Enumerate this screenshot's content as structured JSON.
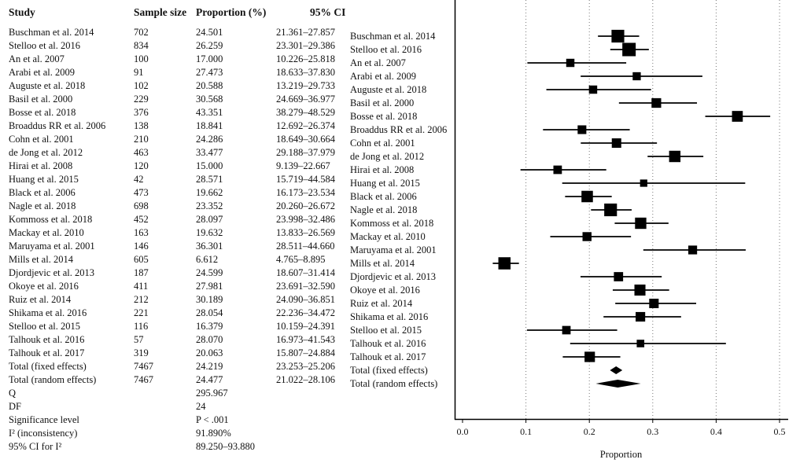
{
  "table": {
    "headers": {
      "study": "Study",
      "sample_size": "Sample size",
      "proportion": "Proportion (%)",
      "ci": "95% CI"
    },
    "rows": [
      {
        "study": "Buschman et al. 2014",
        "n": "702",
        "p": "24.501",
        "ci": "21.361–27.857"
      },
      {
        "study": "Stelloo et al. 2016",
        "n": "834",
        "p": "26.259",
        "ci": "23.301–29.386"
      },
      {
        "study": "An et al. 2007",
        "n": "100",
        "p": "17.000",
        "ci": "10.226–25.818"
      },
      {
        "study": "Arabi et al. 2009",
        "n": "91",
        "p": "27.473",
        "ci": "18.633–37.830"
      },
      {
        "study": "Auguste et al. 2018",
        "n": "102",
        "p": "20.588",
        "ci": "13.219–29.733"
      },
      {
        "study": "Basil et al. 2000",
        "n": "229",
        "p": "30.568",
        "ci": "24.669–36.977"
      },
      {
        "study": "Bosse et al. 2018",
        "n": "376",
        "p": "43.351",
        "ci": "38.279–48.529"
      },
      {
        "study": "Broaddus RR et al. 2006",
        "n": "138",
        "p": "18.841",
        "ci": "12.692–26.374"
      },
      {
        "study": "Cohn et al. 2001",
        "n": "210",
        "p": "24.286",
        "ci": "18.649–30.664"
      },
      {
        "study": "de Jong et al. 2012",
        "n": "463",
        "p": "33.477",
        "ci": "29.188–37.979"
      },
      {
        "study": "Hirai et al. 2008",
        "n": "120",
        "p": "15.000",
        "ci": "9.139–22.667"
      },
      {
        "study": "Huang et al. 2015",
        "n": "42",
        "p": "28.571",
        "ci": "15.719–44.584"
      },
      {
        "study": "Black et al. 2006",
        "n": "473",
        "p": "19.662",
        "ci": "16.173–23.534"
      },
      {
        "study": "Nagle et al. 2018",
        "n": "698",
        "p": "23.352",
        "ci": "20.260–26.672"
      },
      {
        "study": "Kommoss et al. 2018",
        "n": "452",
        "p": "28.097",
        "ci": "23.998–32.486"
      },
      {
        "study": "Mackay et al. 2010",
        "n": "163",
        "p": "19.632",
        "ci": "13.833–26.569"
      },
      {
        "study": "Maruyama et al. 2001",
        "n": "146",
        "p": "36.301",
        "ci": "28.511–44.660"
      },
      {
        "study": "Mills et al. 2014",
        "n": "605",
        "p": "6.612",
        "ci": "4.765–8.895"
      },
      {
        "study": "Djordjevic et al. 2013",
        "n": "187",
        "p": "24.599",
        "ci": "18.607–31.414"
      },
      {
        "study": "Okoye et al. 2016",
        "n": "411",
        "p": "27.981",
        "ci": "23.691–32.590"
      },
      {
        "study": "Ruiz et al. 2014",
        "n": "212",
        "p": "30.189",
        "ci": "24.090–36.851"
      },
      {
        "study": "Shikama et al. 2016",
        "n": "221",
        "p": "28.054",
        "ci": "22.236–34.472"
      },
      {
        "study": "Stelloo et al. 2015",
        "n": "116",
        "p": "16.379",
        "ci": "10.159–24.391"
      },
      {
        "study": "Talhouk et al. 2016",
        "n": "57",
        "p": "28.070",
        "ci": "16.973–41.543"
      },
      {
        "study": "Talhouk et al. 2017",
        "n": "319",
        "p": "20.063",
        "ci": "15.807–24.884"
      },
      {
        "study": "Total (fixed effects)",
        "n": "7467",
        "p": "24.219",
        "ci": "23.253–25.206"
      },
      {
        "study": "Total (random effects)",
        "n": "7467",
        "p": "24.477",
        "ci": "21.022–28.106"
      }
    ],
    "stats": [
      {
        "label": "Q",
        "value": "295.967"
      },
      {
        "label": "DF",
        "value": "24"
      },
      {
        "label": "Significance level",
        "value": "P < .001"
      },
      {
        "label": "I² (inconsistency)",
        "value": "91.890%"
      },
      {
        "label": "95% CI for I²",
        "value": "89.250–93.880"
      }
    ]
  },
  "chart_data": {
    "type": "forest",
    "xlabel": "Proportion",
    "xlim": [
      0,
      0.5
    ],
    "xticks": [
      "0.0",
      "0.1",
      "0.2",
      "0.3",
      "0.4",
      "0.5"
    ],
    "xtick_values": [
      0,
      0.1,
      0.2,
      0.3,
      0.4,
      0.5
    ],
    "grid": "vertical dotted",
    "studies": [
      {
        "label": "Buschman et al. 2014",
        "est": 0.24501,
        "lo": 0.21361,
        "hi": 0.27857,
        "weight": 702
      },
      {
        "label": "Stelloo et al. 2016",
        "est": 0.26259,
        "lo": 0.23301,
        "hi": 0.29386,
        "weight": 834
      },
      {
        "label": "An et al. 2007",
        "est": 0.17,
        "lo": 0.10226,
        "hi": 0.25818,
        "weight": 100
      },
      {
        "label": "Arabi et al. 2009",
        "est": 0.27473,
        "lo": 0.18633,
        "hi": 0.3783,
        "weight": 91
      },
      {
        "label": "Auguste et al. 2018",
        "est": 0.20588,
        "lo": 0.13219,
        "hi": 0.29733,
        "weight": 102
      },
      {
        "label": "Basil et al. 2000",
        "est": 0.30568,
        "lo": 0.24669,
        "hi": 0.36977,
        "weight": 229
      },
      {
        "label": "Bosse et al. 2018",
        "est": 0.43351,
        "lo": 0.38279,
        "hi": 0.48529,
        "weight": 376
      },
      {
        "label": "Broaddus RR et al. 2006",
        "est": 0.18841,
        "lo": 0.12692,
        "hi": 0.26374,
        "weight": 138
      },
      {
        "label": "Cohn et al. 2001",
        "est": 0.24286,
        "lo": 0.18649,
        "hi": 0.30664,
        "weight": 210
      },
      {
        "label": "de Jong et al. 2012",
        "est": 0.33477,
        "lo": 0.29188,
        "hi": 0.37979,
        "weight": 463
      },
      {
        "label": "Hirai et al. 2008",
        "est": 0.15,
        "lo": 0.09139,
        "hi": 0.22667,
        "weight": 120
      },
      {
        "label": "Huang et al. 2015",
        "est": 0.28571,
        "lo": 0.15719,
        "hi": 0.44584,
        "weight": 42
      },
      {
        "label": "Black et al. 2006",
        "est": 0.19662,
        "lo": 0.16173,
        "hi": 0.23534,
        "weight": 473
      },
      {
        "label": "Nagle et al. 2018",
        "est": 0.23352,
        "lo": 0.2026,
        "hi": 0.26672,
        "weight": 698
      },
      {
        "label": "Kommoss et al. 2018",
        "est": 0.28097,
        "lo": 0.23998,
        "hi": 0.32486,
        "weight": 452
      },
      {
        "label": "Mackay et al. 2010",
        "est": 0.19632,
        "lo": 0.13833,
        "hi": 0.26569,
        "weight": 163
      },
      {
        "label": "Maruyama et al. 2001",
        "est": 0.36301,
        "lo": 0.28511,
        "hi": 0.4466,
        "weight": 146
      },
      {
        "label": "Mills et al. 2014",
        "est": 0.06612,
        "lo": 0.04765,
        "hi": 0.08895,
        "weight": 605
      },
      {
        "label": "Djordjevic et al. 2013",
        "est": 0.24599,
        "lo": 0.18607,
        "hi": 0.31414,
        "weight": 187
      },
      {
        "label": "Okoye et al. 2016",
        "est": 0.27981,
        "lo": 0.23691,
        "hi": 0.3259,
        "weight": 411
      },
      {
        "label": "Ruiz et al. 2014",
        "est": 0.30189,
        "lo": 0.2409,
        "hi": 0.36851,
        "weight": 212
      },
      {
        "label": "Shikama et al. 2016",
        "est": 0.28054,
        "lo": 0.22236,
        "hi": 0.34472,
        "weight": 221
      },
      {
        "label": "Stelloo et al. 2015",
        "est": 0.16379,
        "lo": 0.10159,
        "hi": 0.24391,
        "weight": 116
      },
      {
        "label": "Talhouk et al. 2016",
        "est": 0.2807,
        "lo": 0.16973,
        "hi": 0.41543,
        "weight": 57
      },
      {
        "label": "Talhouk et al. 2017",
        "est": 0.20063,
        "lo": 0.15807,
        "hi": 0.24884,
        "weight": 319
      }
    ],
    "summaries": [
      {
        "label": "Total (fixed effects)",
        "est": 0.24219,
        "lo": 0.23253,
        "hi": 0.25206
      },
      {
        "label": "Total (random effects)",
        "est": 0.24477,
        "lo": 0.21022,
        "hi": 0.28106
      }
    ]
  }
}
